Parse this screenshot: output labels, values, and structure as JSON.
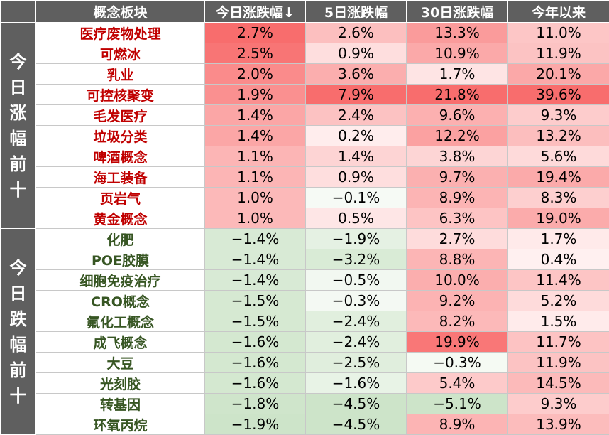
{
  "header": {
    "sector": "概念板块",
    "today": "今日涨跌幅↓",
    "d5": "5日涨跌幅",
    "d30": "30日涨跌幅",
    "ytd": "今年以来"
  },
  "side_labels": {
    "top": "今日涨幅前十",
    "bottom": "今日跌幅前十"
  },
  "colors": {
    "header_bg": "#5f5f5f",
    "up_text": "#c00000",
    "down_text": "#375623",
    "positive_max": "#f86d6d",
    "negative_max": "#cde4c9"
  },
  "chart_data": {
    "type": "table",
    "columns": [
      "今日涨跌幅↓",
      "5日涨跌幅",
      "30日涨跌幅",
      "今年以来"
    ],
    "unit": "%",
    "groups": [
      {
        "label": "今日涨幅前十",
        "rows": [
          {
            "name": "医疗废物处理",
            "values": [
              2.7,
              2.6,
              13.3,
              11.0
            ]
          },
          {
            "name": "可燃冰",
            "values": [
              2.5,
              0.9,
              10.9,
              11.9
            ]
          },
          {
            "name": "乳业",
            "values": [
              2.0,
              3.6,
              1.7,
              20.1
            ]
          },
          {
            "name": "可控核聚变",
            "values": [
              1.9,
              7.9,
              21.8,
              39.6
            ]
          },
          {
            "name": "毛发医疗",
            "values": [
              1.4,
              2.4,
              9.6,
              9.3
            ]
          },
          {
            "name": "垃圾分类",
            "values": [
              1.4,
              0.2,
              12.2,
              13.2
            ]
          },
          {
            "name": "啤酒概念",
            "values": [
              1.1,
              1.4,
              3.8,
              5.6
            ]
          },
          {
            "name": "海工装备",
            "values": [
              1.1,
              0.9,
              9.7,
              19.4
            ]
          },
          {
            "name": "页岩气",
            "values": [
              1.0,
              -0.1,
              8.9,
              8.3
            ]
          },
          {
            "name": "黄金概念",
            "values": [
              1.0,
              0.5,
              6.3,
              19.0
            ]
          }
        ]
      },
      {
        "label": "今日跌幅前十",
        "rows": [
          {
            "name": "化肥",
            "values": [
              -1.4,
              -1.9,
              2.7,
              1.7
            ]
          },
          {
            "name": "POE胶膜",
            "values": [
              -1.4,
              -3.2,
              8.8,
              0.4
            ]
          },
          {
            "name": "细胞免疫治疗",
            "values": [
              -1.4,
              -0.5,
              10.0,
              11.4
            ]
          },
          {
            "name": "CRO概念",
            "values": [
              -1.5,
              -0.3,
              9.2,
              5.2
            ]
          },
          {
            "name": "氟化工概念",
            "values": [
              -1.5,
              -2.4,
              8.2,
              1.5
            ]
          },
          {
            "name": "成飞概念",
            "values": [
              -1.6,
              -2.4,
              19.9,
              11.7
            ]
          },
          {
            "name": "大豆",
            "values": [
              -1.6,
              -2.5,
              -0.3,
              11.9
            ]
          },
          {
            "name": "光刻胶",
            "values": [
              -1.6,
              -1.6,
              5.4,
              14.5
            ]
          },
          {
            "name": "转基因",
            "values": [
              -1.8,
              -4.5,
              -5.1,
              9.3
            ]
          },
          {
            "name": "环氧丙烷",
            "values": [
              -1.9,
              -4.5,
              8.9,
              13.9
            ]
          }
        ]
      }
    ]
  }
}
